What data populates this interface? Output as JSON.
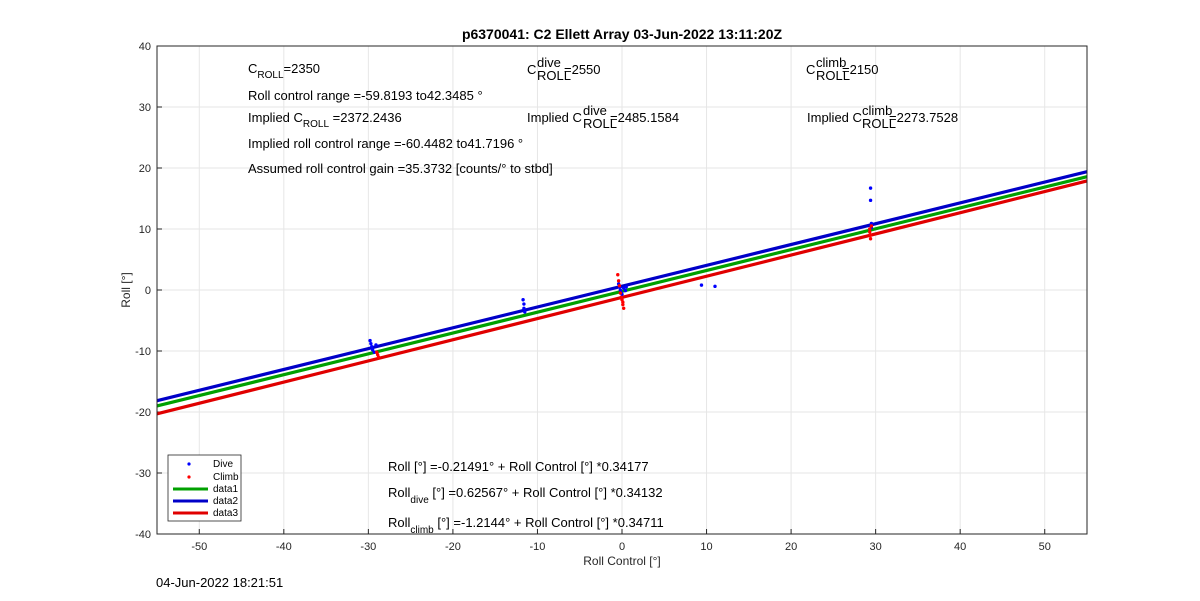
{
  "chart_data": {
    "type": "scatter",
    "title": "p6370041: C2 Ellett Array 03-Jun-2022 13:11:20Z",
    "xlabel": "Roll Control [°]",
    "ylabel": "Roll [°]",
    "xlim": [
      -55,
      55
    ],
    "ylim": [
      -40,
      40
    ],
    "xticks": [
      "-50",
      "-40",
      "-30",
      "-20",
      "-10",
      "0",
      "10",
      "20",
      "30",
      "40",
      "50"
    ],
    "yticks": [
      "40",
      "30",
      "20",
      "10",
      "0",
      "-10",
      "-20",
      "-30",
      "-40"
    ],
    "grid": true,
    "legend_placement": "bottom-left",
    "series": [
      {
        "name": "Dive",
        "kind": "points",
        "color": "#0000ff",
        "points": [
          [
            -29.8,
            -8.3
          ],
          [
            -29.7,
            -8.8
          ],
          [
            -29.6,
            -9.3
          ],
          [
            -29.5,
            -9.8
          ],
          [
            -29.3,
            -10.2
          ],
          [
            -29.1,
            -9.0
          ],
          [
            -11.7,
            -1.6
          ],
          [
            -11.6,
            -2.3
          ],
          [
            -11.6,
            -3.0
          ],
          [
            -11.5,
            -3.6
          ],
          [
            -0.4,
            1.0
          ],
          [
            -0.3,
            0.5
          ],
          [
            -0.2,
            0.0
          ],
          [
            -0.1,
            -0.4
          ],
          [
            0.0,
            -0.7
          ],
          [
            0.2,
            0.3
          ],
          [
            0.4,
            -0.1
          ],
          [
            0.5,
            0.5
          ],
          [
            9.4,
            0.8
          ],
          [
            11.0,
            0.6
          ],
          [
            29.4,
            16.7
          ],
          [
            29.4,
            14.7
          ],
          [
            29.5,
            10.9
          ],
          [
            29.5,
            10.2
          ]
        ]
      },
      {
        "name": "Climb",
        "kind": "points",
        "color": "#ff0000",
        "points": [
          [
            -29.0,
            -10.2
          ],
          [
            -28.9,
            -10.6
          ],
          [
            -28.8,
            -11.0
          ],
          [
            -0.5,
            2.5
          ],
          [
            -0.4,
            1.5
          ],
          [
            -0.3,
            0.7
          ],
          [
            -0.2,
            -0.5
          ],
          [
            -0.1,
            -1.2
          ],
          [
            0.0,
            -1.6
          ],
          [
            0.1,
            -2.0
          ],
          [
            0.1,
            -2.4
          ],
          [
            0.2,
            -3.0
          ],
          [
            29.3,
            10.0
          ],
          [
            29.3,
            9.5
          ],
          [
            29.4,
            9.0
          ],
          [
            29.4,
            8.4
          ],
          [
            29.5,
            10.5
          ]
        ]
      },
      {
        "name": "data1",
        "kind": "line",
        "color": "#00a000",
        "intercept": -0.21491,
        "slope": 0.34177
      },
      {
        "name": "data2",
        "kind": "line",
        "color": "#0000c8",
        "intercept": 0.62567,
        "slope": 0.34132
      },
      {
        "name": "data3",
        "kind": "line",
        "color": "#e00000",
        "intercept": -1.2144,
        "slope": 0.34711
      }
    ],
    "annotations_top": {
      "c_roll": {
        "base": "C",
        "sub": "ROLL",
        "value": "=2350"
      },
      "roll_range": "Roll control range =-59.8193 to42.3485 °",
      "implied_c_roll": {
        "pre": "Implied C",
        "sub": "ROLL",
        "value": " =2372.2436"
      },
      "implied_range": "Implied roll control range =-60.4482 to41.7196 °",
      "gain": "Assumed roll control gain =35.3732 [counts/° to stbd]",
      "c_dive": {
        "base": "C",
        "sup": "dive",
        "sub": "ROLL",
        "value": " =2550"
      },
      "implied_c_dive": {
        "pre": "Implied C",
        "sup": "dive",
        "sub": "ROLL",
        "value": " =2485.1584"
      },
      "c_climb": {
        "base": "C",
        "sup": "climb",
        "sub": "ROLL",
        "value": " =2150"
      },
      "implied_c_climb": {
        "pre": "Implied C",
        "sup": "climb",
        "sub": "ROLL",
        "value": " =2273.7528"
      }
    },
    "annotations_bottom": {
      "eq_all": "Roll [°] =-0.21491° + Roll Control [°] *0.34177",
      "eq_dive": {
        "base": "Roll",
        "sub": "dive",
        "rest": " [°] =0.62567° + Roll Control [°] *0.34132"
      },
      "eq_climb": {
        "base": "Roll",
        "sub": "climb",
        "rest": " [°] =-1.2144° + Roll Control [°] *0.34711"
      }
    }
  },
  "footer": {
    "timestamp": "04-Jun-2022 18:21:51"
  }
}
